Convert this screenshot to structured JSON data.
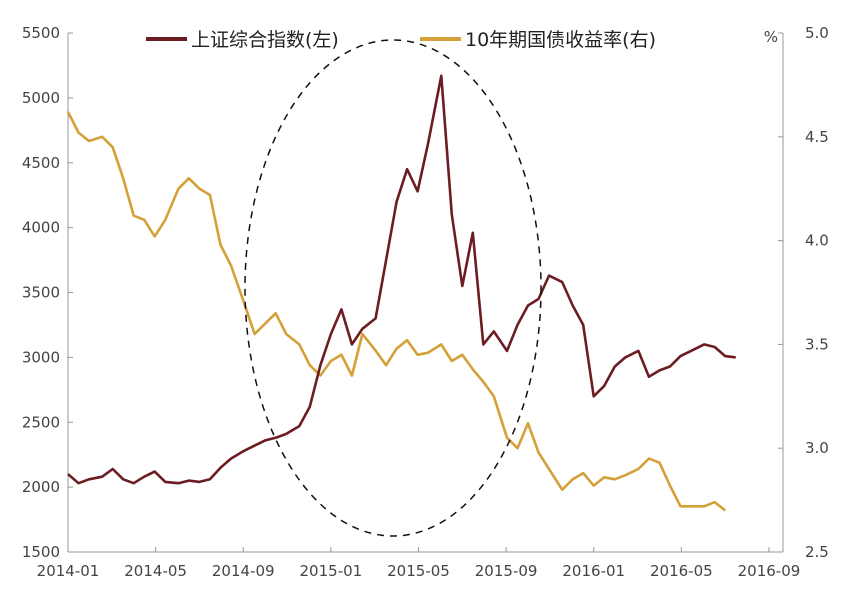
{
  "chart_data": {
    "type": "line",
    "legend": {
      "placement": "top"
    },
    "grid": false,
    "x_labels": [
      "2014-01",
      "2014-05",
      "2014-09",
      "2015-01",
      "2015-05",
      "2015-09",
      "2016-01",
      "2016-05",
      "2016-09"
    ],
    "y_left": {
      "range": [
        1500,
        5500
      ],
      "ticks": [
        "1500",
        "2000",
        "2500",
        "3000",
        "3500",
        "4000",
        "4500",
        "5000",
        "5500"
      ]
    },
    "y_right": {
      "range": [
        2.5,
        5.0
      ],
      "ticks": [
        "2.5",
        "3.0",
        "3.5",
        "4.0",
        "4.5",
        "5.0"
      ],
      "unit": "%"
    },
    "annotation": "dashed-ellipse around 2014-09 to 2015-09",
    "series": [
      {
        "name": "上证综合指数(左)",
        "axis": "left",
        "color": "#6b1d23",
        "points": [
          [
            2014.0,
            2100
          ],
          [
            2014.04,
            2030
          ],
          [
            2014.08,
            2060
          ],
          [
            2014.13,
            2080
          ],
          [
            2014.17,
            2140
          ],
          [
            2014.21,
            2060
          ],
          [
            2014.25,
            2030
          ],
          [
            2014.29,
            2080
          ],
          [
            2014.33,
            2120
          ],
          [
            2014.37,
            2040
          ],
          [
            2014.42,
            2030
          ],
          [
            2014.46,
            2050
          ],
          [
            2014.5,
            2040
          ],
          [
            2014.54,
            2060
          ],
          [
            2014.58,
            2150
          ],
          [
            2014.62,
            2220
          ],
          [
            2014.67,
            2280
          ],
          [
            2014.71,
            2320
          ],
          [
            2014.75,
            2360
          ],
          [
            2014.79,
            2380
          ],
          [
            2014.83,
            2410
          ],
          [
            2014.88,
            2470
          ],
          [
            2014.92,
            2620
          ],
          [
            2014.96,
            2940
          ],
          [
            2015.0,
            3180
          ],
          [
            2015.04,
            3370
          ],
          [
            2015.08,
            3100
          ],
          [
            2015.12,
            3220
          ],
          [
            2015.17,
            3300
          ],
          [
            2015.21,
            3750
          ],
          [
            2015.25,
            4200
          ],
          [
            2015.29,
            4450
          ],
          [
            2015.33,
            4280
          ],
          [
            2015.37,
            4650
          ],
          [
            2015.42,
            5170
          ],
          [
            2015.46,
            4100
          ],
          [
            2015.5,
            3550
          ],
          [
            2015.54,
            3960
          ],
          [
            2015.58,
            3100
          ],
          [
            2015.62,
            3200
          ],
          [
            2015.67,
            3050
          ],
          [
            2015.71,
            3250
          ],
          [
            2015.75,
            3400
          ],
          [
            2015.79,
            3450
          ],
          [
            2015.83,
            3630
          ],
          [
            2015.88,
            3580
          ],
          [
            2015.92,
            3400
          ],
          [
            2015.96,
            3250
          ],
          [
            2016.0,
            2700
          ],
          [
            2016.04,
            2780
          ],
          [
            2016.08,
            2930
          ],
          [
            2016.12,
            3000
          ],
          [
            2016.17,
            3050
          ],
          [
            2016.21,
            2850
          ],
          [
            2016.25,
            2900
          ],
          [
            2016.29,
            2930
          ],
          [
            2016.33,
            3010
          ],
          [
            2016.37,
            3050
          ],
          [
            2016.42,
            3100
          ],
          [
            2016.46,
            3080
          ],
          [
            2016.5,
            3010
          ],
          [
            2016.54,
            3000
          ]
        ]
      },
      {
        "name": "10年期国债收益率(右)",
        "axis": "right",
        "color": "#d4a038",
        "points": [
          [
            2014.0,
            4.62
          ],
          [
            2014.04,
            4.52
          ],
          [
            2014.08,
            4.48
          ],
          [
            2014.13,
            4.5
          ],
          [
            2014.17,
            4.45
          ],
          [
            2014.21,
            4.3
          ],
          [
            2014.25,
            4.12
          ],
          [
            2014.29,
            4.1
          ],
          [
            2014.33,
            4.02
          ],
          [
            2014.37,
            4.1
          ],
          [
            2014.42,
            4.25
          ],
          [
            2014.46,
            4.3
          ],
          [
            2014.5,
            4.25
          ],
          [
            2014.54,
            4.22
          ],
          [
            2014.58,
            3.98
          ],
          [
            2014.62,
            3.88
          ],
          [
            2014.67,
            3.7
          ],
          [
            2014.71,
            3.55
          ],
          [
            2014.75,
            3.6
          ],
          [
            2014.79,
            3.65
          ],
          [
            2014.83,
            3.55
          ],
          [
            2014.88,
            3.5
          ],
          [
            2014.92,
            3.4
          ],
          [
            2014.96,
            3.35
          ],
          [
            2015.0,
            3.42
          ],
          [
            2015.04,
            3.45
          ],
          [
            2015.08,
            3.35
          ],
          [
            2015.12,
            3.55
          ],
          [
            2015.17,
            3.47
          ],
          [
            2015.21,
            3.4
          ],
          [
            2015.25,
            3.48
          ],
          [
            2015.29,
            3.52
          ],
          [
            2015.33,
            3.45
          ],
          [
            2015.37,
            3.46
          ],
          [
            2015.42,
            3.5
          ],
          [
            2015.46,
            3.42
          ],
          [
            2015.5,
            3.45
          ],
          [
            2015.54,
            3.38
          ],
          [
            2015.58,
            3.32
          ],
          [
            2015.62,
            3.25
          ],
          [
            2015.67,
            3.05
          ],
          [
            2015.71,
            3.0
          ],
          [
            2015.75,
            3.12
          ],
          [
            2015.79,
            2.98
          ],
          [
            2015.83,
            2.9
          ],
          [
            2015.88,
            2.8
          ],
          [
            2015.92,
            2.85
          ],
          [
            2015.96,
            2.88
          ],
          [
            2016.0,
            2.82
          ],
          [
            2016.04,
            2.86
          ],
          [
            2016.08,
            2.85
          ],
          [
            2016.12,
            2.87
          ],
          [
            2016.17,
            2.9
          ],
          [
            2016.21,
            2.95
          ],
          [
            2016.25,
            2.93
          ],
          [
            2016.29,
            2.82
          ],
          [
            2016.33,
            2.72
          ],
          [
            2016.37,
            2.72
          ],
          [
            2016.42,
            2.72
          ],
          [
            2016.46,
            2.74
          ],
          [
            2016.5,
            2.7
          ]
        ]
      }
    ]
  }
}
